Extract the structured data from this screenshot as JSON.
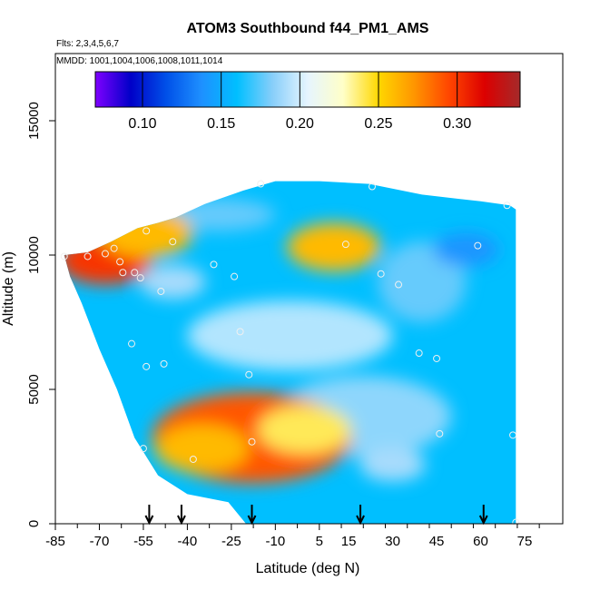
{
  "chart_data": {
    "type": "heatmap",
    "title": "ATOM3 Southbound f44_PM1_AMS",
    "subtitle_flights": "Flts: 2,3,4,5,6,7",
    "subtitle_dates": "MMDD: 1001,1004,1006,1008,1011,1014",
    "xlabel": "Latitude (deg N)",
    "ylabel": "Altitude (m)",
    "xlim": [
      -85,
      88
    ],
    "ylim": [
      0,
      17500
    ],
    "x_ticks": [
      -85,
      -70,
      -55,
      -40,
      -25,
      -10,
      5,
      15,
      30,
      45,
      60,
      75
    ],
    "x_tick_labels": [
      "-85",
      "-70",
      "-55",
      "-40",
      "-25",
      "-10",
      "5",
      "15",
      "30",
      "45",
      "60",
      "75"
    ],
    "y_ticks": [
      0,
      5000,
      10000,
      15000
    ],
    "y_tick_labels": [
      "0",
      "5000",
      "10000",
      "15000"
    ],
    "colorbar": {
      "min": 0.07,
      "max": 0.34,
      "ticks": [
        0.1,
        0.15,
        0.2,
        0.25,
        0.3
      ],
      "tick_labels": [
        "0.10",
        "0.15",
        "0.20",
        "0.25",
        "0.30"
      ],
      "colors": [
        "#7f00ff",
        "#0000c8",
        "#0050e8",
        "#1e90ff",
        "#00bfff",
        "#87cefa",
        "#e6f5ff",
        "#ffffc8",
        "#ffd700",
        "#ff9600",
        "#ff4500",
        "#dc0000",
        "#a52a2a"
      ]
    },
    "profile_markers_lat": [
      -53,
      -42,
      -18,
      19,
      61
    ],
    "data_extent": {
      "bottom_lat": [
        -40,
        72
      ],
      "bottom_alt_m": 1000,
      "top_alt_m": 12600
    },
    "features": [
      {
        "lat": -18,
        "alt": 3200,
        "value": 0.29
      },
      {
        "lat": -35,
        "alt": 2800,
        "value": 0.26
      },
      {
        "lat": 0,
        "alt": 3500,
        "value": 0.24
      },
      {
        "lat": 10,
        "alt": 10300,
        "value": 0.26
      },
      {
        "lat": -68,
        "alt": 9800,
        "value": 0.3
      },
      {
        "lat": -54,
        "alt": 10800,
        "value": 0.26
      },
      {
        "lat": 55,
        "alt": 10200,
        "value": 0.14
      },
      {
        "lat": -45,
        "alt": 9000,
        "value": 0.19
      },
      {
        "lat": 30,
        "alt": 2200,
        "value": 0.19
      }
    ],
    "observations": [
      {
        "lat": -82,
        "alt": 9950
      },
      {
        "lat": -74,
        "alt": 9950
      },
      {
        "lat": -68,
        "alt": 10050
      },
      {
        "lat": -65,
        "alt": 10250
      },
      {
        "lat": -63,
        "alt": 9750
      },
      {
        "lat": -62,
        "alt": 9350
      },
      {
        "lat": -58,
        "alt": 9350
      },
      {
        "lat": -56,
        "alt": 9150
      },
      {
        "lat": -54,
        "alt": 10900
      },
      {
        "lat": -49,
        "alt": 8650
      },
      {
        "lat": -45,
        "alt": 10500
      },
      {
        "lat": -31,
        "alt": 9650
      },
      {
        "lat": -24,
        "alt": 9200
      },
      {
        "lat": -22,
        "alt": 7150
      },
      {
        "lat": -15,
        "alt": 12650
      },
      {
        "lat": -59,
        "alt": 6700
      },
      {
        "lat": -54,
        "alt": 5850
      },
      {
        "lat": -48,
        "alt": 5950
      },
      {
        "lat": -19,
        "alt": 5550
      },
      {
        "lat": -55,
        "alt": 2800
      },
      {
        "lat": -38,
        "alt": 2400
      },
      {
        "lat": -18,
        "alt": 3050
      },
      {
        "lat": 14,
        "alt": 10400
      },
      {
        "lat": 23,
        "alt": 12550
      },
      {
        "lat": 26,
        "alt": 9300
      },
      {
        "lat": 32,
        "alt": 8900
      },
      {
        "lat": 39,
        "alt": 6350
      },
      {
        "lat": 45,
        "alt": 6150
      },
      {
        "lat": 46,
        "alt": 3350
      },
      {
        "lat": 59,
        "alt": 10350
      },
      {
        "lat": 69,
        "alt": 11850
      },
      {
        "lat": 71,
        "alt": 3300
      },
      {
        "lat": 72,
        "alt": 50
      }
    ]
  }
}
